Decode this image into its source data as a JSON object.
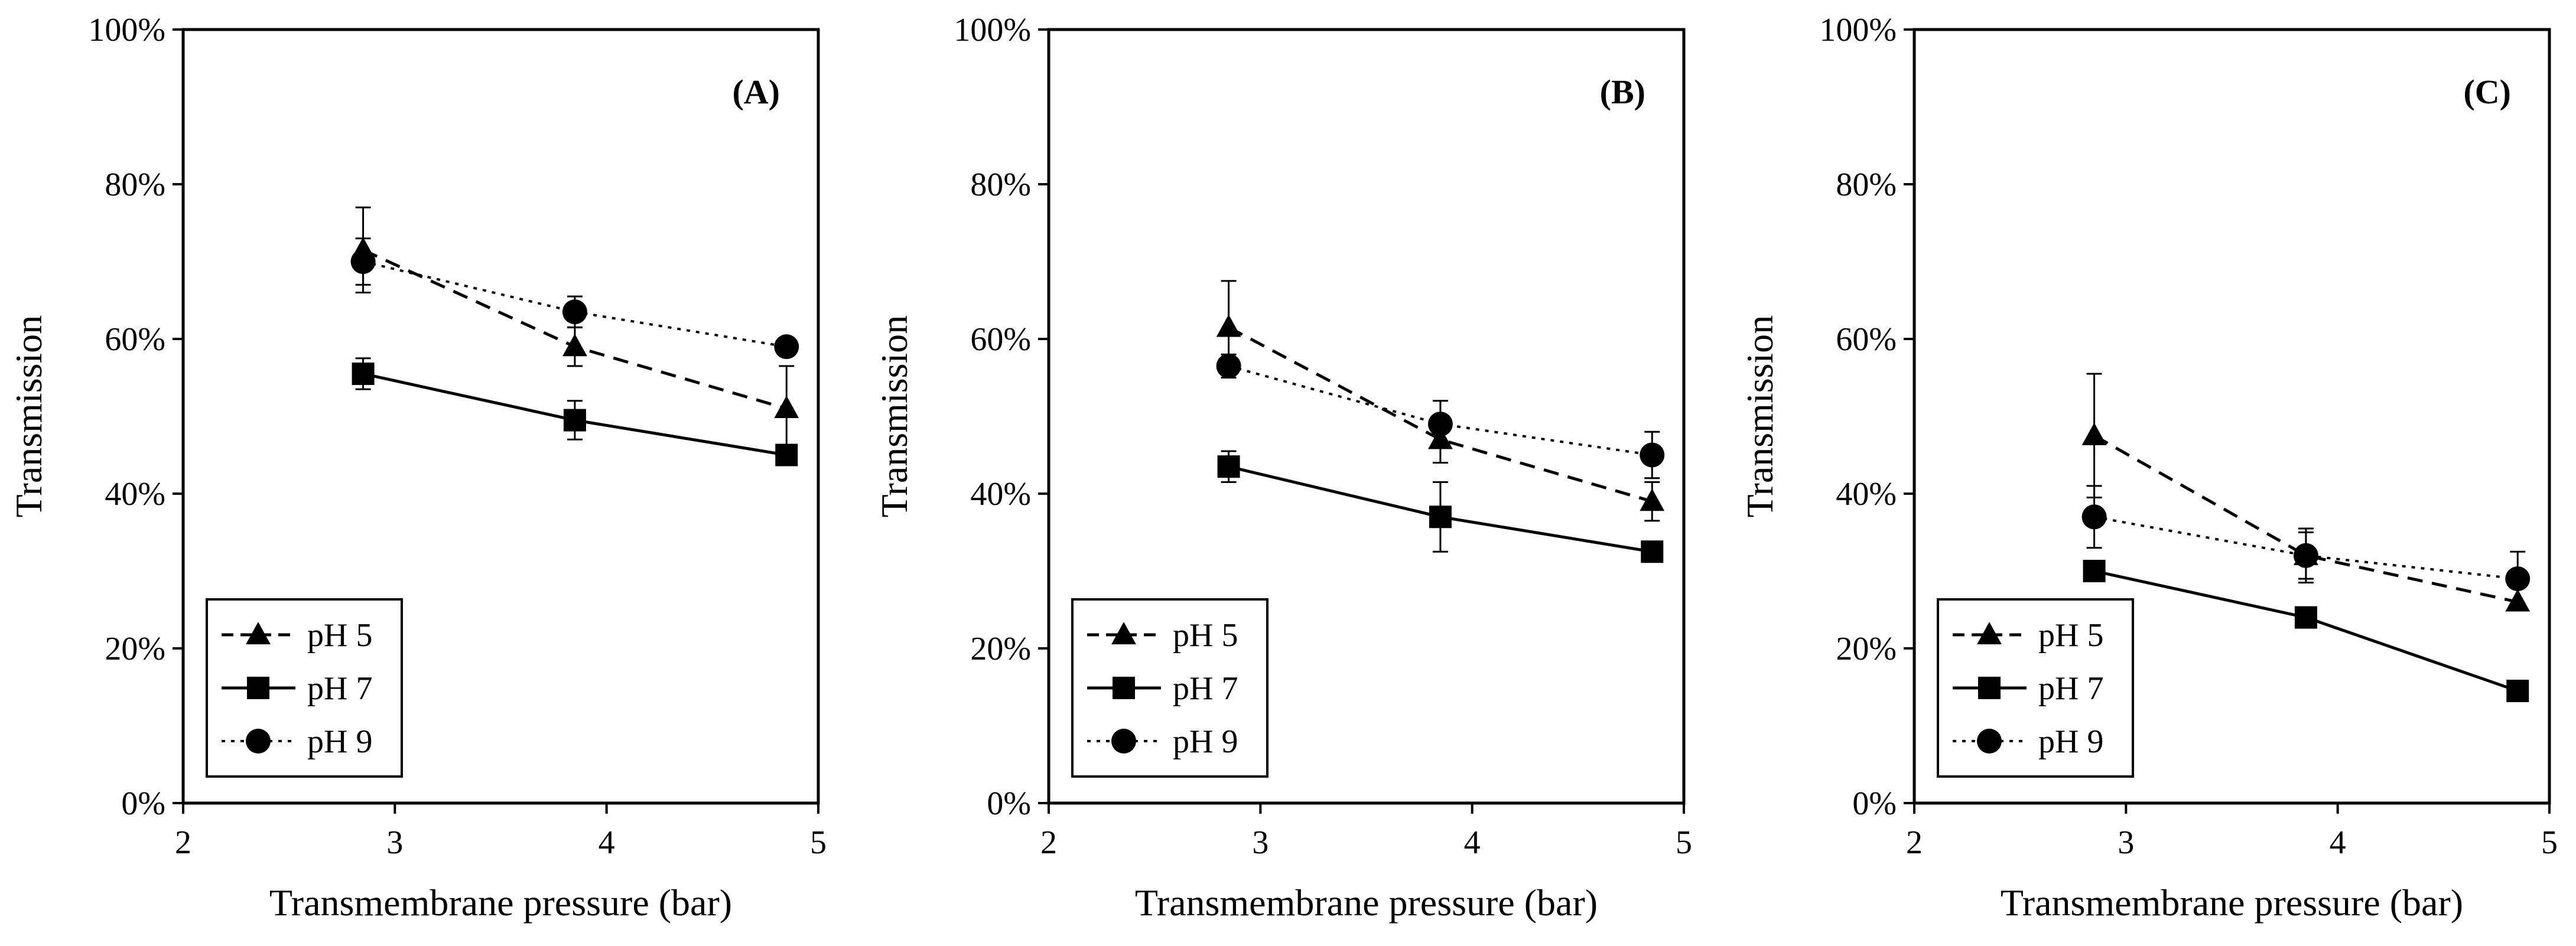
{
  "chart_data": [
    {
      "type": "line",
      "panel_label": "(A)",
      "xlabel": "Transmembrane pressure (bar)",
      "ylabel": "Transmission",
      "xlim": [
        2,
        5
      ],
      "ylim": [
        0,
        100
      ],
      "x_ticks": [
        "2",
        "3",
        "4",
        "5"
      ],
      "y_ticks": [
        "0%",
        "20%",
        "40%",
        "60%",
        "80%",
        "100%"
      ],
      "grid": false,
      "legend": "bottom-left",
      "x": [
        2.85,
        3.85,
        4.85
      ],
      "series": [
        {
          "name": "pH 5",
          "marker": "triangle",
          "line": "dashed",
          "values": [
            71.5,
            59,
            51
          ],
          "errors": [
            5.5,
            2.5,
            5.5
          ]
        },
        {
          "name": "pH 7",
          "marker": "square",
          "line": "solid",
          "values": [
            55.5,
            49.5,
            45
          ],
          "errors": [
            2,
            2.5,
            0
          ]
        },
        {
          "name": "pH 9",
          "marker": "circle",
          "line": "dotted",
          "values": [
            70,
            63.5,
            59
          ],
          "errors": [
            3,
            2,
            0
          ]
        }
      ]
    },
    {
      "type": "line",
      "panel_label": "(B)",
      "xlabel": "Transmembrane pressure (bar)",
      "ylabel": "Transmission",
      "xlim": [
        2,
        5
      ],
      "ylim": [
        0,
        100
      ],
      "x_ticks": [
        "2",
        "3",
        "4",
        "5"
      ],
      "y_ticks": [
        "0%",
        "20%",
        "40%",
        "60%",
        "80%",
        "100%"
      ],
      "grid": false,
      "legend": "bottom-left",
      "x": [
        2.85,
        3.85,
        4.85
      ],
      "series": [
        {
          "name": "pH 5",
          "marker": "triangle",
          "line": "dashed",
          "values": [
            61.5,
            47,
            39
          ],
          "errors": [
            6,
            3,
            2.5
          ]
        },
        {
          "name": "pH 7",
          "marker": "square",
          "line": "solid",
          "values": [
            43.5,
            37,
            32.5
          ],
          "errors": [
            2,
            4.5,
            0
          ]
        },
        {
          "name": "pH 9",
          "marker": "circle",
          "line": "dotted",
          "values": [
            56.5,
            49,
            45
          ],
          "errors": [
            1.5,
            3,
            3
          ]
        }
      ]
    },
    {
      "type": "line",
      "panel_label": "(C)",
      "xlabel": "Transmembrane pressure (bar)",
      "ylabel": "Transmission",
      "xlim": [
        2,
        5
      ],
      "ylim": [
        0,
        100
      ],
      "x_ticks": [
        "2",
        "3",
        "4",
        "5"
      ],
      "y_ticks": [
        "0%",
        "20%",
        "40%",
        "60%",
        "80%",
        "100%"
      ],
      "grid": false,
      "legend": "bottom-left",
      "x": [
        2.85,
        3.85,
        4.85
      ],
      "series": [
        {
          "name": "pH 5",
          "marker": "triangle",
          "line": "dashed",
          "values": [
            47.5,
            32,
            26
          ],
          "errors": [
            8,
            3.5,
            0
          ]
        },
        {
          "name": "pH 7",
          "marker": "square",
          "line": "solid",
          "values": [
            30,
            24,
            14.5
          ],
          "errors": [
            0,
            0,
            0
          ]
        },
        {
          "name": "pH 9",
          "marker": "circle",
          "line": "dotted",
          "values": [
            37,
            32,
            29
          ],
          "errors": [
            4,
            3,
            3.5
          ]
        }
      ]
    }
  ]
}
